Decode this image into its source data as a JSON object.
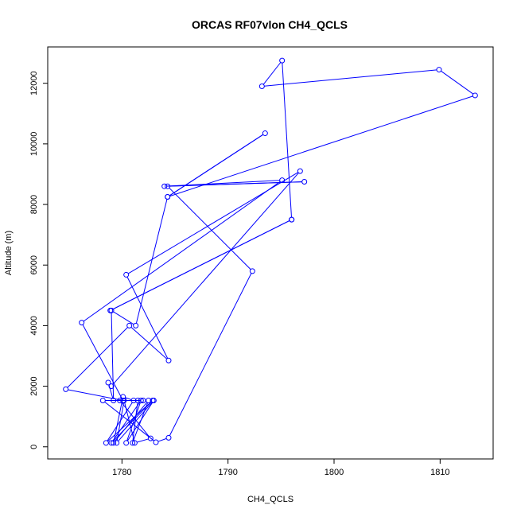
{
  "chart_data": {
    "type": "line",
    "title": "ORCAS RF07vlon CH4_QCLS",
    "xlabel": "CH4_QCLS",
    "ylabel": "Altitude (m)",
    "xlim": [
      1773,
      1815
    ],
    "ylim": [
      -400,
      13200
    ],
    "xticks": [
      1780,
      1790,
      1800,
      1810
    ],
    "yticks": [
      0,
      2000,
      4000,
      6000,
      8000,
      10000,
      12000
    ],
    "grid": false,
    "marker": "open-circle",
    "color": "#0000ff",
    "series": [
      {
        "x": [
          1781.5,
          1781.0,
          1782.5,
          1779.2,
          1780.1,
          1781.1,
          1778.5,
          1782.9,
          1779.0,
          1781.8,
          1780.4,
          1783.0,
          1779.5,
          1780.2,
          1781.2,
          1782.7,
          1779.8,
          1782.0,
          1778.2,
          1783.2,
          1784.4,
          1792.3,
          1784.3,
          1797.2,
          1784.0,
          1795.1,
          1776.2,
          1780.1,
          1774.7,
          1780.7,
          1784.4,
          1780.4,
          1796.8,
          1779.0,
          1778.7,
          1779.2,
          1779.0,
          1781.3,
          1784.3,
          1793.5,
          1784.3,
          1813.3,
          1809.9,
          1793.2,
          1795.1,
          1796.0,
          1778.9,
          1796.0
        ],
        "y": [
          1530,
          130,
          1530,
          130,
          1650,
          1530,
          130,
          1530,
          130,
          1530,
          130,
          1530,
          130,
          1530,
          130,
          280,
          1530,
          1530,
          1530,
          150,
          300,
          5800,
          8600,
          8750,
          8600,
          8800,
          4100,
          1530,
          1900,
          4000,
          2850,
          5680,
          9100,
          2000,
          2120,
          1530,
          4500,
          4000,
          8250,
          10350,
          8250,
          11600,
          12450,
          11900,
          12750,
          7500,
          4500,
          7500
        ]
      }
    ]
  }
}
